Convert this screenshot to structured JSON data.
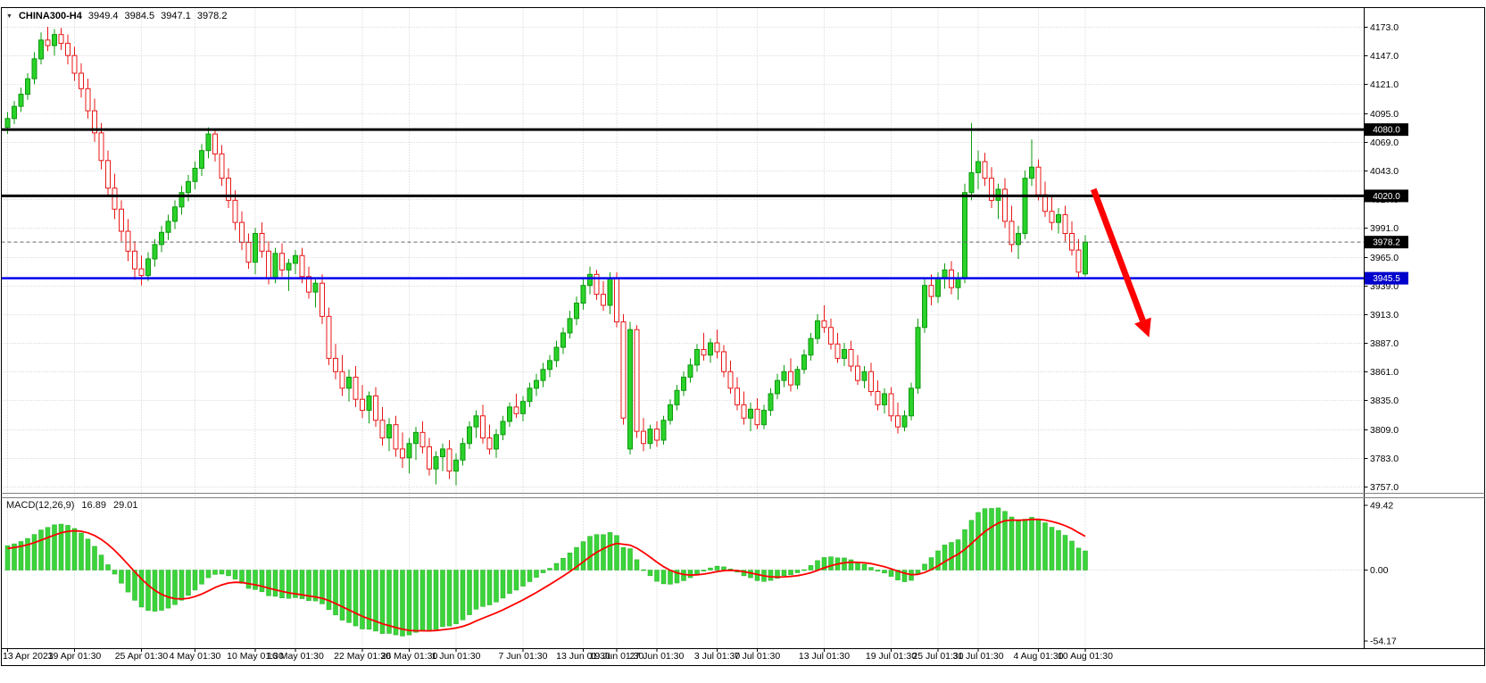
{
  "symbol_bar": {
    "symbol": "CHINA300-H4",
    "open": "3949.4",
    "high": "3984.5",
    "low": "3947.1",
    "close": "3978.2"
  },
  "icons": {
    "symbol_dropdown": "▼"
  },
  "colors": {
    "background": "#ffffff",
    "grid": "#cccccc",
    "frame": "#000000",
    "bull_fill": "#2ad22a",
    "bull_stroke": "#0c9a0c",
    "bear_fill": "#ffffff",
    "bear_stroke": "#e81717",
    "arrow": "#ff0000"
  },
  "chart_data": {
    "type": "candlestick",
    "symbol": "CHINA300-H4",
    "timeframe": "H4",
    "title": "CHINA300-H4",
    "ylim": [
      3757,
      4173
    ],
    "y_ticks": [
      4173,
      4147,
      4121,
      4095,
      4069,
      4043,
      4017,
      3991,
      3965,
      3939,
      3913,
      3887,
      3861,
      3835,
      3809,
      3783,
      3757
    ],
    "x_labels": [
      {
        "i": 0,
        "t": "13 Apr 2023"
      },
      {
        "i": 10,
        "t": "19 Apr 01:30"
      },
      {
        "i": 20,
        "t": "25 Apr 01:30"
      },
      {
        "i": 28,
        "t": "4 May 01:30"
      },
      {
        "i": 37,
        "t": "10 May 01:30"
      },
      {
        "i": 43,
        "t": "16 May 01:30"
      },
      {
        "i": 53,
        "t": "22 May 01:30"
      },
      {
        "i": 60,
        "t": "26 May 01:30"
      },
      {
        "i": 67,
        "t": "1 Jun 01:30"
      },
      {
        "i": 77,
        "t": "7 Jun 01:30"
      },
      {
        "i": 86,
        "t": "13 Jun 01:30"
      },
      {
        "i": 91,
        "t": "19 Jun 01:30"
      },
      {
        "i": 97,
        "t": "27 Jun 01:30"
      },
      {
        "i": 106,
        "t": "3 Jul 01:30"
      },
      {
        "i": 112,
        "t": "7 Jul 01:30"
      },
      {
        "i": 122,
        "t": "13 Jul 01:30"
      },
      {
        "i": 132,
        "t": "19 Jul 01:30"
      },
      {
        "i": 139,
        "t": "25 Jul 01:30"
      },
      {
        "i": 145,
        "t": "31 Jul 01:30"
      },
      {
        "i": 154,
        "t": "4 Aug 01:30"
      },
      {
        "i": 161,
        "t": "10 Aug 01:30"
      }
    ],
    "candles": [
      [
        4082,
        4096,
        4076,
        4090
      ],
      [
        4090,
        4106,
        4085,
        4101
      ],
      [
        4101,
        4118,
        4096,
        4112
      ],
      [
        4112,
        4131,
        4107,
        4126
      ],
      [
        4126,
        4150,
        4121,
        4144
      ],
      [
        4144,
        4168,
        4139,
        4161
      ],
      [
        4161,
        4173,
        4151,
        4156
      ],
      [
        4156,
        4171,
        4147,
        4166
      ],
      [
        4166,
        4172,
        4152,
        4158
      ],
      [
        4158,
        4166,
        4139,
        4147
      ],
      [
        4147,
        4155,
        4124,
        4131
      ],
      [
        4131,
        4140,
        4109,
        4117
      ],
      [
        4117,
        4126,
        4090,
        4097
      ],
      [
        4097,
        4108,
        4069,
        4077
      ],
      [
        4077,
        4086,
        4044,
        4052
      ],
      [
        4052,
        4061,
        4019,
        4027
      ],
      [
        4027,
        4040,
        3999,
        4008
      ],
      [
        4008,
        4016,
        3979,
        3988
      ],
      [
        3988,
        3999,
        3961,
        3970
      ],
      [
        3970,
        3979,
        3944,
        3954
      ],
      [
        3954,
        3966,
        3939,
        3948
      ],
      [
        3948,
        3969,
        3943,
        3963
      ],
      [
        3963,
        3981,
        3956,
        3976
      ],
      [
        3976,
        3993,
        3969,
        3987
      ],
      [
        3987,
        4003,
        3980,
        3997
      ],
      [
        3997,
        4016,
        3990,
        4010
      ],
      [
        4010,
        4029,
        4003,
        4023
      ],
      [
        4023,
        4039,
        4015,
        4033
      ],
      [
        4033,
        4051,
        4026,
        4045
      ],
      [
        4045,
        4067,
        4038,
        4061
      ],
      [
        4061,
        4082,
        4054,
        4076
      ],
      [
        4076,
        4081,
        4051,
        4058
      ],
      [
        4058,
        4066,
        4029,
        4036
      ],
      [
        4036,
        4045,
        4009,
        4016
      ],
      [
        4016,
        4025,
        3989,
        3996
      ],
      [
        3996,
        4006,
        3971,
        3978
      ],
      [
        3978,
        3986,
        3954,
        3960
      ],
      [
        3960,
        3991,
        3949,
        3986
      ],
      [
        3986,
        3996,
        3964,
        3970
      ],
      [
        3970,
        3979,
        3940,
        3946
      ],
      [
        3946,
        3973,
        3941,
        3968
      ],
      [
        3968,
        3977,
        3947,
        3953
      ],
      [
        3953,
        3963,
        3934,
        3959
      ],
      [
        3959,
        3971,
        3949,
        3966
      ],
      [
        3966,
        3973,
        3941,
        3947
      ],
      [
        3947,
        3956,
        3927,
        3933
      ],
      [
        3933,
        3946,
        3919,
        3941
      ],
      [
        3941,
        3949,
        3904,
        3911
      ],
      [
        3911,
        3919,
        3867,
        3873
      ],
      [
        3873,
        3886,
        3854,
        3861
      ],
      [
        3861,
        3876,
        3839,
        3846
      ],
      [
        3846,
        3863,
        3834,
        3856
      ],
      [
        3856,
        3866,
        3829,
        3836
      ],
      [
        3836,
        3849,
        3819,
        3826
      ],
      [
        3826,
        3843,
        3814,
        3839
      ],
      [
        3839,
        3847,
        3811,
        3817
      ],
      [
        3817,
        3829,
        3794,
        3801
      ],
      [
        3801,
        3819,
        3789,
        3813
      ],
      [
        3813,
        3821,
        3784,
        3791
      ],
      [
        3791,
        3806,
        3774,
        3783
      ],
      [
        3783,
        3801,
        3769,
        3796
      ],
      [
        3796,
        3811,
        3781,
        3806
      ],
      [
        3806,
        3816,
        3787,
        3793
      ],
      [
        3793,
        3801,
        3767,
        3773
      ],
      [
        3773,
        3789,
        3759,
        3784
      ],
      [
        3784,
        3796,
        3771,
        3791
      ],
      [
        3791,
        3799,
        3764,
        3771
      ],
      [
        3771,
        3787,
        3758,
        3781
      ],
      [
        3781,
        3801,
        3776,
        3796
      ],
      [
        3796,
        3816,
        3791,
        3811
      ],
      [
        3811,
        3826,
        3801,
        3821
      ],
      [
        3821,
        3831,
        3796,
        3801
      ],
      [
        3801,
        3813,
        3786,
        3791
      ],
      [
        3791,
        3809,
        3783,
        3804
      ],
      [
        3804,
        3821,
        3799,
        3816
      ],
      [
        3816,
        3833,
        3811,
        3829
      ],
      [
        3829,
        3841,
        3819,
        3823
      ],
      [
        3823,
        3839,
        3816,
        3834
      ],
      [
        3834,
        3851,
        3829,
        3846
      ],
      [
        3846,
        3859,
        3839,
        3853
      ],
      [
        3853,
        3869,
        3847,
        3863
      ],
      [
        3863,
        3876,
        3856,
        3871
      ],
      [
        3871,
        3889,
        3865,
        3883
      ],
      [
        3883,
        3901,
        3877,
        3896
      ],
      [
        3896,
        3916,
        3891,
        3909
      ],
      [
        3909,
        3929,
        3903,
        3923
      ],
      [
        3923,
        3946,
        3917,
        3939
      ],
      [
        3939,
        3956,
        3931,
        3949
      ],
      [
        3949,
        3953,
        3926,
        3931
      ],
      [
        3931,
        3943,
        3916,
        3921
      ],
      [
        3921,
        3951,
        3913,
        3945
      ],
      [
        3945,
        3951,
        3901,
        3906
      ],
      [
        3906,
        3913,
        3813,
        3819
      ],
      [
        3791,
        3906,
        3786,
        3899
      ],
      [
        3899,
        3903,
        3801,
        3807
      ],
      [
        3807,
        3819,
        3789,
        3796
      ],
      [
        3796,
        3813,
        3791,
        3809
      ],
      [
        3809,
        3816,
        3793,
        3799
      ],
      [
        3799,
        3821,
        3795,
        3817
      ],
      [
        3817,
        3836,
        3813,
        3831
      ],
      [
        3831,
        3849,
        3826,
        3844
      ],
      [
        3844,
        3861,
        3839,
        3856
      ],
      [
        3856,
        3873,
        3851,
        3867
      ],
      [
        3867,
        3886,
        3861,
        3881
      ],
      [
        3881,
        3896,
        3871,
        3876
      ],
      [
        3876,
        3891,
        3869,
        3887
      ],
      [
        3887,
        3899,
        3873,
        3879
      ],
      [
        3879,
        3885,
        3856,
        3861
      ],
      [
        3861,
        3871,
        3841,
        3846
      ],
      [
        3846,
        3856,
        3826,
        3831
      ],
      [
        3831,
        3843,
        3813,
        3819
      ],
      [
        3819,
        3833,
        3807,
        3827
      ],
      [
        3827,
        3837,
        3809,
        3813
      ],
      [
        3813,
        3831,
        3809,
        3826
      ],
      [
        3826,
        3846,
        3821,
        3841
      ],
      [
        3841,
        3859,
        3836,
        3853
      ],
      [
        3853,
        3867,
        3847,
        3861
      ],
      [
        3861,
        3873,
        3843,
        3849
      ],
      [
        3849,
        3866,
        3845,
        3863
      ],
      [
        3863,
        3881,
        3859,
        3876
      ],
      [
        3876,
        3896,
        3871,
        3891
      ],
      [
        3891,
        3913,
        3886,
        3907
      ],
      [
        3907,
        3921,
        3896,
        3901
      ],
      [
        3901,
        3909,
        3881,
        3886
      ],
      [
        3886,
        3896,
        3869,
        3873
      ],
      [
        3873,
        3887,
        3866,
        3881
      ],
      [
        3881,
        3889,
        3861,
        3866
      ],
      [
        3866,
        3876,
        3849,
        3853
      ],
      [
        3853,
        3866,
        3846,
        3861
      ],
      [
        3861,
        3869,
        3839,
        3843
      ],
      [
        3843,
        3853,
        3826,
        3831
      ],
      [
        3831,
        3846,
        3823,
        3841
      ],
      [
        3841,
        3847,
        3816,
        3821
      ],
      [
        3821,
        3833,
        3805,
        3811
      ],
      [
        3811,
        3826,
        3807,
        3821
      ],
      [
        3821,
        3851,
        3817,
        3846
      ],
      [
        3846,
        3909,
        3841,
        3901
      ],
      [
        3901,
        3946,
        3896,
        3939
      ],
      [
        3939,
        3949,
        3921,
        3929
      ],
      [
        3929,
        3951,
        3923,
        3946
      ],
      [
        3946,
        3959,
        3936,
        3953
      ],
      [
        3953,
        3961,
        3931,
        3937
      ],
      [
        3937,
        3951,
        3926,
        3946
      ],
      [
        3946,
        4031,
        3941,
        4023
      ],
      [
        4023,
        4086,
        4016,
        4041
      ],
      [
        4041,
        4061,
        4026,
        4051
      ],
      [
        4051,
        4059,
        4029,
        4036
      ],
      [
        4036,
        4046,
        4009,
        4016
      ],
      [
        4016,
        4031,
        3999,
        4026
      ],
      [
        4026,
        4036,
        3991,
        3997
      ],
      [
        3997,
        4011,
        3969,
        3976
      ],
      [
        3976,
        3993,
        3963,
        3986
      ],
      [
        3986,
        4043,
        3981,
        4036
      ],
      [
        4036,
        4071,
        4029,
        4046
      ],
      [
        4046,
        4053,
        4016,
        4021
      ],
      [
        4021,
        4033,
        4001,
        4006
      ],
      [
        4006,
        4019,
        3989,
        3996
      ],
      [
        3996,
        4009,
        3986,
        4003
      ],
      [
        4003,
        4011,
        3979,
        3986
      ],
      [
        3986,
        3997,
        3966,
        3971
      ],
      [
        3971,
        3981,
        3946,
        3951
      ],
      [
        3949.4,
        3984.5,
        3947.1,
        3978.2
      ]
    ],
    "levels": [
      {
        "name": "resistance-line-4080",
        "price": 4080.0,
        "label": "4080.0",
        "color": "#000000",
        "width": 3,
        "tag_bg": "#000000"
      },
      {
        "name": "resistance-line-4020",
        "price": 4020.0,
        "label": "4020.0",
        "color": "#000000",
        "width": 3,
        "tag_bg": "#000000"
      },
      {
        "name": "current-price-line",
        "price": 3978.2,
        "label": "3978.2",
        "color": "#666666",
        "width": 1,
        "dash": "4,3",
        "tag_bg": "#000000"
      },
      {
        "name": "support-line-3945",
        "price": 3945.5,
        "label": "3945.5",
        "color": "#0000ee",
        "width": 2.5,
        "tag_bg": "#0000cc"
      }
    ],
    "arrow": {
      "from_index": 162.3,
      "from_price": 4026,
      "to_index": 170.6,
      "to_price": 3892,
      "color": "#ff0000",
      "width": 7
    },
    "macd": {
      "label": "MACD(12,26,9)",
      "value": "16.89",
      "signal": "29.01",
      "ylim": [
        -54.17,
        49.42
      ],
      "axis_labels": [
        "49.42",
        "0.00",
        "-54.17"
      ],
      "histogram_color": "#3bd43b",
      "histogram_stroke": "#1faf1f",
      "signal_color": "#ff0000"
    }
  }
}
